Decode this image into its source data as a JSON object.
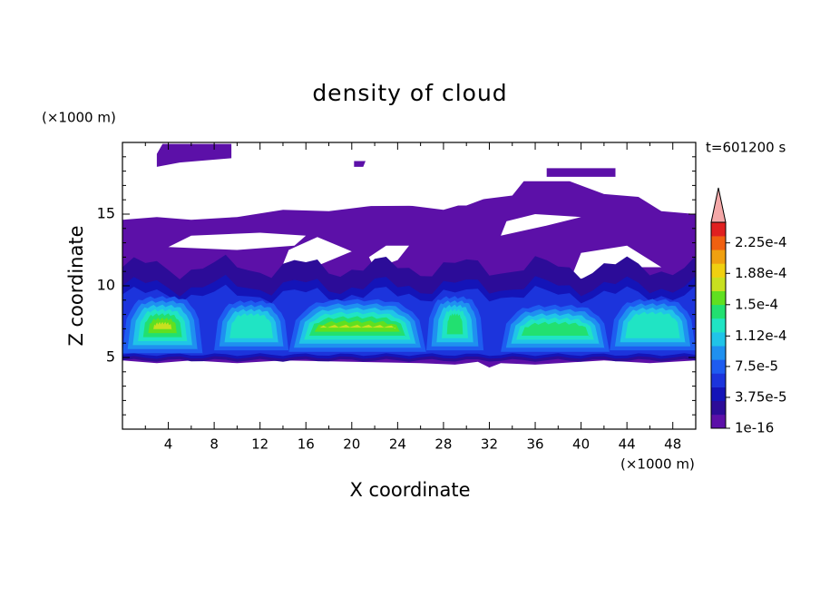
{
  "chart_data": {
    "type": "contour",
    "title": "density of cloud",
    "xlabel": "X coordinate",
    "ylabel": "Z coordinate",
    "x_unit": "(×1000 m)",
    "y_unit": "(×1000 m)",
    "time_label": "t=601200 s",
    "xlim": [
      0,
      50
    ],
    "ylim": [
      0,
      20
    ],
    "xticks": [
      4,
      8,
      12,
      16,
      20,
      24,
      28,
      32,
      36,
      40,
      44,
      48
    ],
    "xminorticks": [
      2,
      6,
      10,
      14,
      18,
      22,
      26,
      30,
      34,
      38,
      42,
      46,
      50
    ],
    "yticks": [
      5,
      10,
      15
    ],
    "yminorticks": [
      1,
      2,
      3,
      4,
      6,
      7,
      8,
      9,
      11,
      12,
      13,
      14,
      16,
      17,
      18,
      19
    ],
    "colorbar": {
      "lim": [
        1e-16,
        0.00025
      ],
      "ticks": [
        1e-16,
        {
          "value": 3.75e-05,
          "label": "3.75e-5"
        },
        {
          "value": 7.5e-05,
          "label": "7.5e-5"
        },
        {
          "value": 0.000112,
          "label": "1.12e-4"
        },
        {
          "value": 0.00015,
          "label": "1.5e-4"
        },
        {
          "value": 0.000188,
          "label": "1.88e-4"
        },
        {
          "value": 0.000225,
          "label": "2.25e-4"
        }
      ],
      "colors": [
        "#5c10a8",
        "#2c0c98",
        "#1414b8",
        "#1c34dc",
        "#1e5cf0",
        "#1f90f0",
        "#20c4e8",
        "#20e4c4",
        "#22e070",
        "#60e020",
        "#c8e020",
        "#f0d010",
        "#f0a010",
        "#f06010",
        "#e02020"
      ],
      "over_color": "#f4a8a8"
    }
  }
}
